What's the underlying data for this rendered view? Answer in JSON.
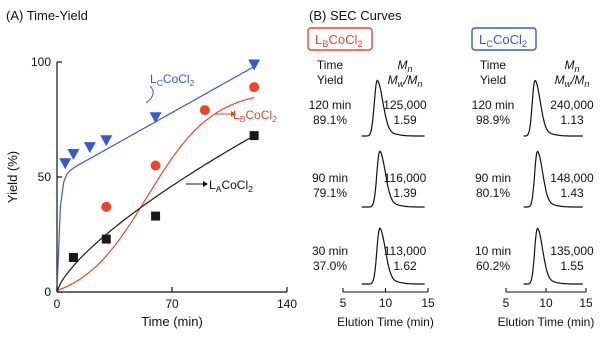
{
  "panelA": {
    "title": "(A) Time-Yield",
    "curve_labels": {
      "LC": {
        "main": "L",
        "sub": "C",
        "rest": "CoCl",
        "sub2": "2"
      },
      "LB": {
        "main": "L",
        "sub": "B",
        "rest": "CoCl",
        "sub2": "2"
      },
      "LA": {
        "main": "L",
        "sub": "A",
        "rest": "CoCl",
        "sub2": "2"
      }
    }
  },
  "panelB": {
    "title": "(B) SEC Curves",
    "col_header_left": "Time",
    "col_header_left2": "Yield",
    "col_header_right_main": "M",
    "col_header_right_sub": "n",
    "col_header_right2": "M",
    "col_header_right2_sub": "w",
    "col_header_right2_mid": "/M",
    "col_header_right2_sub2": "n",
    "xlabel": "Elution Time (min)",
    "xticks": [
      "5",
      "10",
      "15"
    ],
    "panels": [
      {
        "badge": {
          "main": "L",
          "sub": "B",
          "rest": "CoCl",
          "sub2": "2"
        },
        "badge_color": "#e8472a",
        "rows": [
          {
            "time": "120 min",
            "yield": "89.1%",
            "mn": "125,000",
            "dispersity": "1.59"
          },
          {
            "time": "90 min",
            "yield": "79.1%",
            "mn": "116,000",
            "dispersity": "1.39"
          },
          {
            "time": "30 min",
            "yield": "37.0%",
            "mn": "113,000",
            "dispersity": "1.62"
          }
        ]
      },
      {
        "badge": {
          "main": "L",
          "sub": "C",
          "rest": "CoCl",
          "sub2": "2"
        },
        "badge_color": "#3a5bc7",
        "rows": [
          {
            "time": "120 min",
            "yield": "98.9%",
            "mn": "240,000",
            "dispersity": "1.13"
          },
          {
            "time": "90 min",
            "yield": "80.1%",
            "mn": "148,000",
            "dispersity": "1.43"
          },
          {
            "time": "10 min",
            "yield": "60.2%",
            "mn": "135,000",
            "dispersity": "1.55"
          }
        ]
      }
    ]
  },
  "chart_data": [
    {
      "type": "scatter",
      "title": "(A) Time-Yield",
      "xlabel": "Time (min)",
      "ylabel": "Yield (%)",
      "xlim": [
        0,
        140
      ],
      "ylim": [
        0,
        100
      ],
      "xticks": [
        "0",
        "70",
        "140"
      ],
      "yticks": [
        "0",
        "50",
        "100"
      ],
      "grid": false,
      "series": [
        {
          "name": "LCCoCl2",
          "marker": "triangle-down",
          "color": "#3a5bc7",
          "x": [
            5,
            10,
            20,
            30,
            60,
            120
          ],
          "y": [
            56,
            60,
            63,
            66,
            76,
            98.9
          ]
        },
        {
          "name": "LBCoCl2",
          "marker": "circle",
          "color": "#e8472a",
          "x": [
            30,
            60,
            90,
            120
          ],
          "y": [
            37,
            55,
            79.1,
            89.1
          ]
        },
        {
          "name": "LACoCl2",
          "marker": "square",
          "color": "#1a1a1a",
          "x": [
            10,
            30,
            60,
            120
          ],
          "y": [
            15,
            23,
            33,
            68
          ]
        }
      ]
    },
    {
      "type": "line",
      "title": "(B) SEC Curves",
      "xlabel": "Elution Time (min)",
      "xlim": [
        5,
        15
      ],
      "xticks": [
        "5",
        "10",
        "15"
      ],
      "series": [
        {
          "name": "LBCoCl2 120 min",
          "peak": 9.0
        },
        {
          "name": "LBCoCl2 90 min",
          "peak": 9.3
        },
        {
          "name": "LBCoCl2 30 min",
          "peak": 9.3
        },
        {
          "name": "LCCoCl2 120 min",
          "peak": 8.6
        },
        {
          "name": "LCCoCl2 90 min",
          "peak": 8.9
        },
        {
          "name": "LCCoCl2 10 min",
          "peak": 8.9
        }
      ]
    }
  ]
}
